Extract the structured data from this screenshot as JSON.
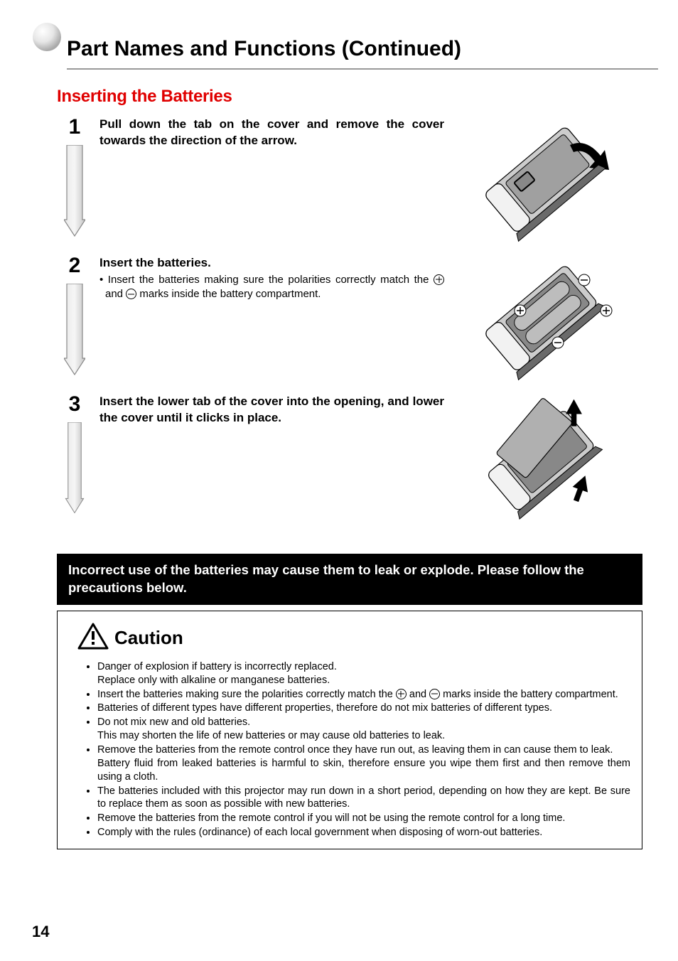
{
  "page": {
    "number": "14",
    "main_title": "Part Names and Functions (Continued)",
    "sub_title": "Inserting the Batteries"
  },
  "colors": {
    "accent_red": "#e00000",
    "rule_gray": "#999999",
    "arrow_stroke": "#888888",
    "arrow_fill": "#dcdcdc",
    "illus_light": "#c8c8c8",
    "illus_mid": "#9e9e9e",
    "illus_dark": "#666666"
  },
  "steps": [
    {
      "num": "1",
      "heading": "Pull down the tab on the cover and remove the cover towards the direction of the arrow.",
      "detail_parts": null
    },
    {
      "num": "2",
      "heading": "Insert the batteries.",
      "detail_parts": [
        "• Insert the batteries making sure the polarities correctly match the ",
        "PLUS",
        " and ",
        "MINUS",
        " marks inside the battery compartment."
      ]
    },
    {
      "num": "3",
      "heading": "Insert the lower tab of the cover into the opening, and lower the cover until it clicks in place.",
      "detail_parts": null
    }
  ],
  "warning_banner": "Incorrect use of the batteries may cause them to leak or explode. Please follow the precautions below.",
  "caution": {
    "title": "Caution",
    "items": [
      {
        "text": "Danger of explosion if battery is incorrectly replaced.",
        "sublines": [
          "Replace only with alkaline or manganese batteries."
        ]
      },
      {
        "text_parts": [
          "Insert the batteries making sure the polarities correctly match the ",
          "PLUS",
          " and ",
          "MINUS",
          " marks inside the battery compartment."
        ]
      },
      {
        "text": "Batteries of different types have different properties, therefore do not mix batteries of different types."
      },
      {
        "text": "Do not mix new and old batteries.",
        "sublines": [
          "This may shorten the life of new batteries or may cause old batteries to leak."
        ]
      },
      {
        "text": "Remove the batteries from the remote control once they have run out, as leaving them in can cause them to leak.",
        "sublines": [
          "Battery fluid from leaked batteries is harmful to skin, therefore ensure you wipe them first and then remove them using a cloth."
        ]
      },
      {
        "text": "The batteries included with this projector may run down in a short period, depending on how they are kept. Be sure to replace them as soon as possible with new batteries."
      },
      {
        "text": "Remove the batteries from the remote control if you will not be using the remote control for a long time."
      },
      {
        "text": "Comply with the rules (ordinance) of each local government when disposing of worn-out batteries."
      }
    ]
  }
}
